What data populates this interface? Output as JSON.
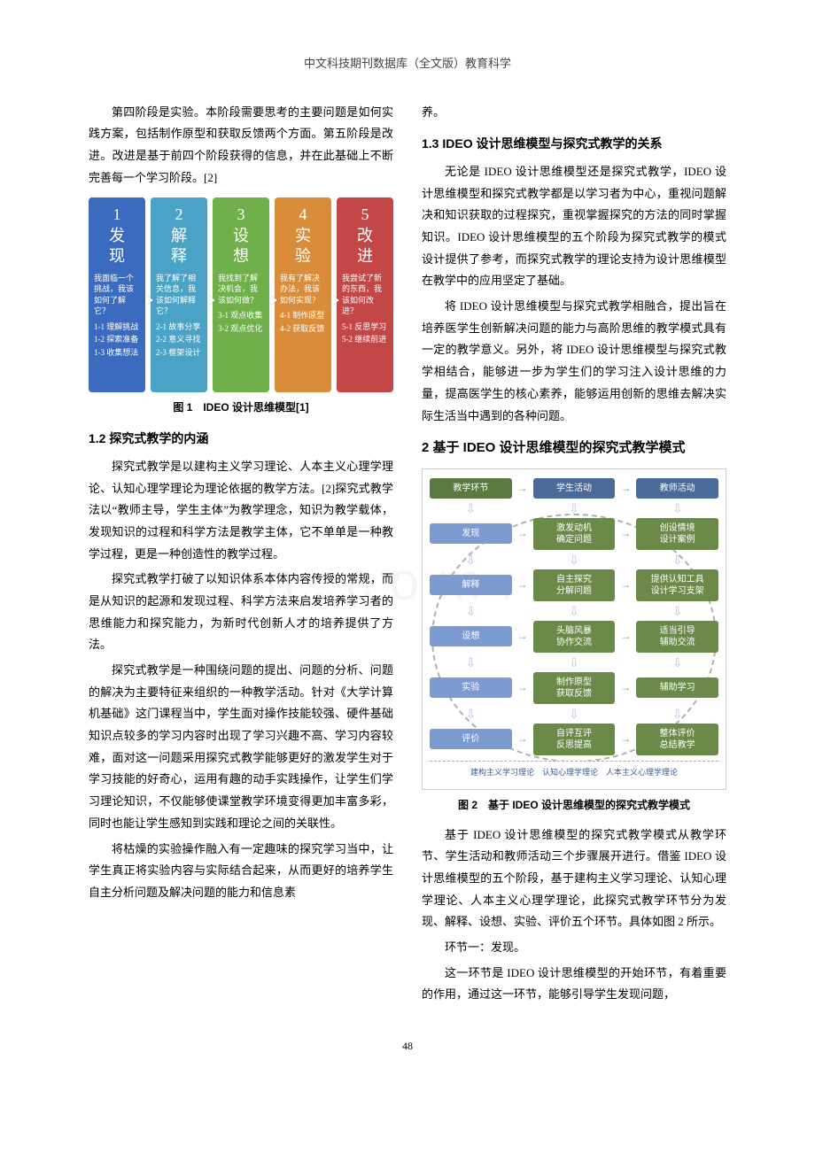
{
  "header": {
    "title": "中文科技期刊数据库（全文版）教育科学"
  },
  "page_number": "48",
  "watermark": "n.com.cn",
  "left_column": {
    "p1": "第四阶段是实验。本阶段需要思考的主要问题是如何实践方案，包括制作原型和获取反馈两个方面。第五阶段是改进。改进是基于前四个阶段获得的信息，并在此基础上不断完善每一个学习阶段。[2]",
    "fig1_caption": "图 1　IDEO 设计思维模型[1]",
    "h_1_2": "1.2 探究式教学的内涵",
    "p2": "探究式教学是以建构主义学习理论、人本主义心理学理论、认知心理学理论为理论依据的教学方法。[2]探究式教学法以“教师主导，学生主体”为教学理念，知识为教学载体，发现知识的过程和科学方法是教学主体，它不单单是一种教学过程，更是一种创造性的教学过程。",
    "p3": "探究式教学打破了以知识体系本体内容传授的常规，而是从知识的起源和发现过程、科学方法来启发培养学习者的思维能力和探究能力，为新时代创新人才的培养提供了方法。",
    "p4": "探究式教学是一种围绕问题的提出、问题的分析、问题的解决为主要特征来组织的一种教学活动。针对《大学计算机基础》这门课程当中，学生面对操作技能较强、硬件基础知识点较多的学习内容时出现了学习兴趣不高、学习内容较难，面对这一问题采用探究式教学能够更好的激发学生对于学习技能的好奇心，运用有趣的动手实践操作，让学生们学习理论知识，不仅能够使课堂教学环境变得更加丰富多彩，同时也能让学生感知到实践和理论之间的关联性。",
    "p5": "将枯燥的实验操作融入有一定趣味的探究学习当中，让学生真正将实验内容与实际结合起来，从而更好的培养学生自主分析问题及解决问题的能力和信息素"
  },
  "right_column": {
    "p_top": "养。",
    "h_1_3": "1.3 IDEO 设计思维模型与探究式教学的关系",
    "p6": "无论是 IDEO 设计思维模型还是探究式教学，IDEO 设计思维模型和探究式教学都是以学习者为中心，重视问题解决和知识获取的过程探究，重视掌握探究的方法的同时掌握知识。IDEO 设计思维模型的五个阶段为探究式教学的模式设计提供了参考，而探究式教学的理论支持为设计思维模型在教学中的应用坚定了基础。",
    "p7": "将 IDEO 设计思维模型与探究式教学相融合，提出旨在培养医学生创新解决问题的能力与高阶思维的教学模式具有一定的教学意义。另外，将 IDEO 设计思维模型与探究式教学相结合，能够进一步为学生们的学习注入设计思维的力量，提高医学生的核心素养，能够运用创新的思维去解决实际生活当中遇到的各种问题。",
    "h_2": "2 基于 IDEO 设计思维模型的探究式教学模式",
    "fig2_caption": "图 2　基于 IDEO 设计思维模型的探究式教学模式",
    "p8": "基于 IDEO 设计思维模型的探究式教学模式从教学环节、学生活动和教师活动三个步骤展开进行。借鉴 IDEO 设计思维模型的五个阶段，基于建构主义学习理论、认知心理学理论、人本主义心理学理论，此探究式教学环节分为发现、解释、设想、实验、评价五个环节。具体如图 2 所示。",
    "p9": "环节一：发现。",
    "p10": "这一环节是 IDEO 设计思维模型的开始环节，有着重要的作用，通过这一环节，能够引导学生发现问题，"
  },
  "fig1": {
    "type": "infographic",
    "box_colors": [
      "#3a6bbf",
      "#4aa3c7",
      "#6fb04a",
      "#d98d3a",
      "#c44747"
    ],
    "text_color": "#ffffff",
    "box_border_radius": 4,
    "boxes": [
      {
        "num": "1",
        "title": "发现",
        "desc": "我面临一个挑战，我该如何了解它？",
        "items": [
          "1-1 理解挑战",
          "1-2 探索准备",
          "1-3 收集想法"
        ]
      },
      {
        "num": "2",
        "title": "解释",
        "desc": "我了解了相关信息，我该如何解释它？",
        "items": [
          "2-1 故事分享",
          "2-2 意义寻找",
          "2-3 框架设计"
        ]
      },
      {
        "num": "3",
        "title": "设想",
        "desc": "我找到了解决机会，我该如何做？",
        "items": [
          "3-1 观点收集",
          "3-2 观点优化"
        ]
      },
      {
        "num": "4",
        "title": "实验",
        "desc": "我有了解决办法，我该如何实现？",
        "items": [
          "4-1 制作原型",
          "4-2 获取反馈"
        ]
      },
      {
        "num": "5",
        "title": "改进",
        "desc": "我尝试了新的东西，我该如何改进？",
        "items": [
          "5-1 反思学习",
          "5-2 继续前进"
        ]
      }
    ]
  },
  "fig2": {
    "type": "flowchart",
    "header_colors": [
      "#5a7a42",
      "#4a6a9a",
      "#4a6a9a"
    ],
    "row_col1_color": "#7b9bd1",
    "row_col23_color": "#6b8a4a",
    "arrow_color": "#b8c5e0",
    "circle_border_color": "#b0b0b0",
    "footer_bg": "#ffffff",
    "footer_color": "#3a5a9a",
    "headers": [
      "教学环节",
      "学生活动",
      "教师活动"
    ],
    "rows": [
      {
        "c1": "发现",
        "c2": "激发动机\n确定问题",
        "c3": "创设情境\n设计案例"
      },
      {
        "c1": "解释",
        "c2": "自主探究\n分解问题",
        "c3": "提供认知工具\n设计学习支架"
      },
      {
        "c1": "设想",
        "c2": "头脑风暴\n协作交流",
        "c3": "适当引导\n辅助交流"
      },
      {
        "c1": "实验",
        "c2": "制作原型\n获取反馈",
        "c3": "辅助学习"
      },
      {
        "c1": "评价",
        "c2": "自评互评\n反思提高",
        "c3": "整体评价\n总结教学"
      }
    ],
    "footer": "建构主义学习理论　认知心理学理论　人本主义心理学理论"
  }
}
